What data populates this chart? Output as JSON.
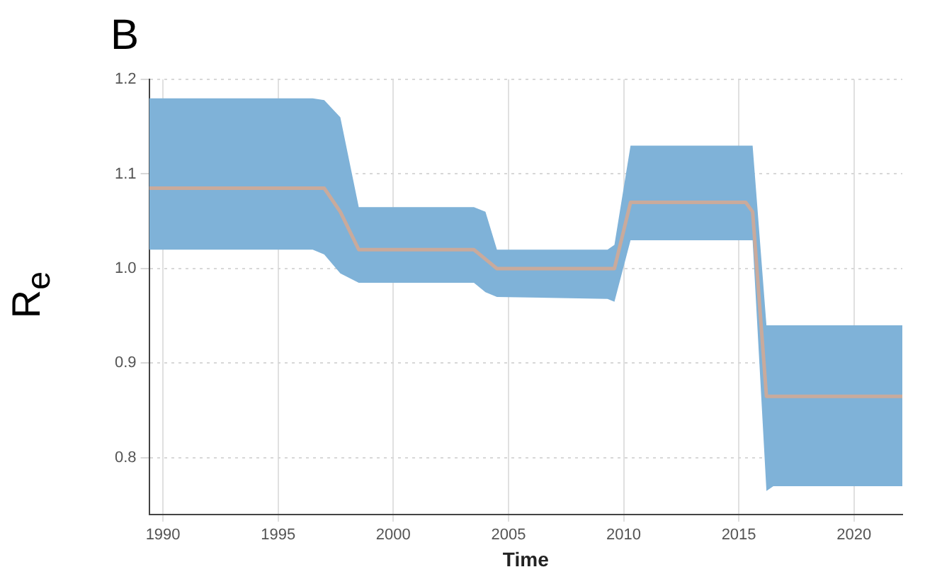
{
  "chart_data": {
    "type": "line",
    "title": "B",
    "xlabel": "Time",
    "ylabel": "R$_{e}$",
    "xlim": [
      1989.4,
      2022.1
    ],
    "xticks": [
      1990,
      1995,
      2000,
      2005,
      2010,
      2015,
      2020
    ],
    "ylim": [
      0.74,
      1.2
    ],
    "yticks": [
      0.8,
      0.9,
      {
        "value": 1,
        "label": "1.0"
      },
      1.1,
      1.2
    ],
    "grid": true,
    "marker": "none",
    "line_style": "solid",
    "series": [
      {
        "color": "#c9aa9c",
        "x": [
          1989.4,
          1996.5,
          1997.0,
          1997.7,
          1998.5,
          2003.5,
          2004.0,
          2004.5,
          2009.3,
          2009.6,
          2010.3,
          2015.3,
          2015.6,
          2016.2,
          2016.5,
          2022.1
        ],
        "values": [
          1.085,
          1.085,
          1.085,
          1.06,
          1.02,
          1.02,
          1.01,
          1.0,
          1.0,
          1.0,
          1.07,
          1.07,
          1.06,
          0.865,
          0.865,
          0.865
        ],
        "lower": [
          1.02,
          1.02,
          1.015,
          0.995,
          0.985,
          0.985,
          0.975,
          0.97,
          0.968,
          0.965,
          1.03,
          1.03,
          1.03,
          0.765,
          0.77,
          0.77
        ],
        "upper": [
          1.18,
          1.18,
          1.178,
          1.16,
          1.065,
          1.065,
          1.06,
          1.02,
          1.02,
          1.025,
          1.13,
          1.13,
          1.13,
          0.94,
          0.94,
          0.94
        ]
      }
    ]
  }
}
